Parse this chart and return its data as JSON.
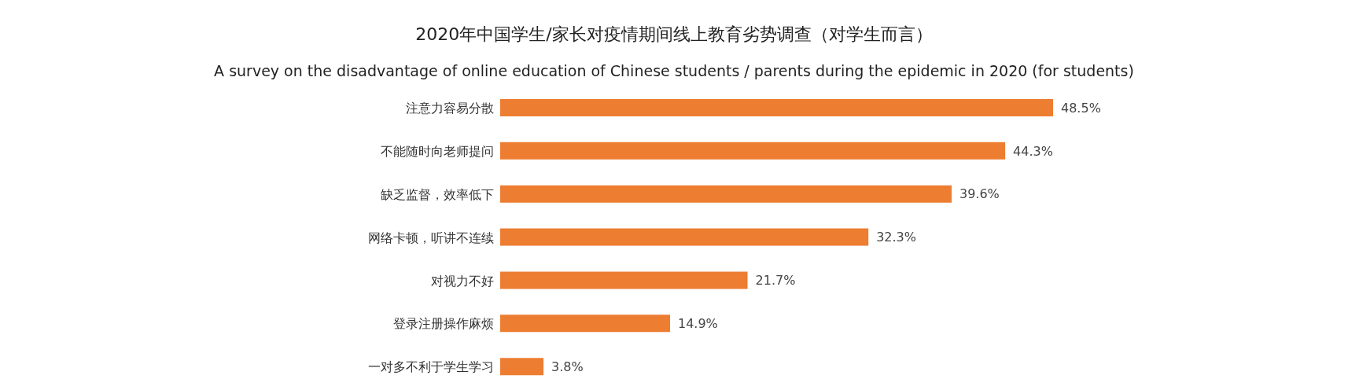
{
  "chart_data": {
    "type": "bar",
    "orientation": "horizontal",
    "title": "2020年中国学生/家长对疫情期间线上教育劣势调查（对学生而言）",
    "subtitle": "A survey on the disadvantage of online education of Chinese students / parents during the epidemic in 2020 (for students)",
    "categories": [
      "注意力容易分散",
      "不能随时向老师提问",
      "缺乏监督，效率低下",
      "网络卡顿，听讲不连续",
      "对视力不好",
      "登录注册操作麻烦",
      "一对多不利于学生学习"
    ],
    "values": [
      48.5,
      44.3,
      39.6,
      32.3,
      21.7,
      14.9,
      3.8
    ],
    "value_labels": [
      "48.5%",
      "44.3%",
      "39.6%",
      "32.3%",
      "21.7%",
      "14.9%",
      "3.8%"
    ],
    "color": "#ed7d31",
    "grid": false,
    "legend": false
  }
}
